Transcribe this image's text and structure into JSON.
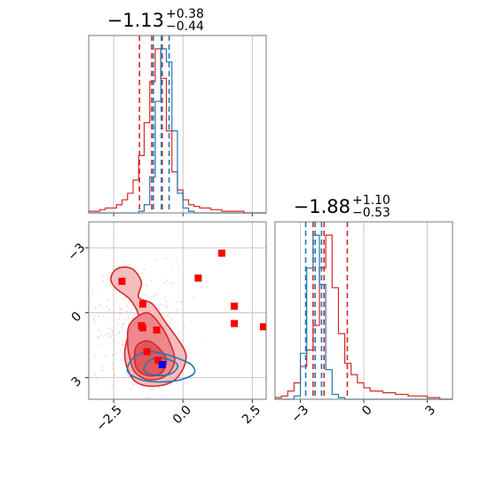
{
  "chart_data": {
    "type": "corner",
    "colors": {
      "red": "#d62728",
      "blue": "#1f77b4",
      "marker_blue": "#0000ff",
      "grid": "#c8c8c8"
    },
    "panels": [
      {
        "id": "hist-param-1",
        "type": "histogram",
        "title": {
          "median": "−1.13",
          "plus": "+0.38",
          "minus": "−0.44"
        },
        "xlim": [
          -3.4,
          3.0
        ],
        "xticks": [
          -2.5,
          0.0,
          2.5
        ],
        "series": [
          {
            "name": "",
            "color": "#d62728",
            "quantiles": [
              -1.57,
              -1.13,
              -0.75
            ],
            "x": [
              -3.4,
              -3.2,
              -3.0,
              -2.8,
              -2.6,
              -2.4,
              -2.2,
              -2.0,
              -1.8,
              -1.6,
              -1.4,
              -1.2,
              -1.0,
              -0.8,
              -0.6,
              -0.4,
              -0.2,
              0.0,
              0.2,
              0.4,
              0.6,
              0.8,
              1.0,
              1.2,
              1.4,
              1.6,
              1.8,
              2.0,
              2.2,
              2.4,
              2.6,
              2.8
            ],
            "counts": [
              1,
              1,
              2,
              3,
              3,
              5,
              8,
              12,
              20,
              35,
              55,
              80,
              100,
              82,
              50,
              25,
              14,
              8,
              5,
              4,
              3,
              3,
              2,
              2,
              1,
              1,
              1,
              1,
              0,
              0,
              0,
              0
            ]
          },
          {
            "name": "",
            "color": "#1f77b4",
            "quantiles": [
              -1.07,
              -0.78,
              -0.5
            ],
            "x": [
              -3.4,
              -3.2,
              -3.0,
              -2.8,
              -2.6,
              -2.4,
              -2.2,
              -2.0,
              -1.8,
              -1.6,
              -1.4,
              -1.2,
              -1.0,
              -0.8,
              -0.6,
              -0.4,
              -0.2,
              0.0,
              0.2,
              0.4,
              0.6,
              0.8,
              1.0,
              1.2,
              1.4,
              1.6,
              1.8,
              2.0,
              2.2,
              2.4,
              2.6,
              2.8
            ],
            "counts": [
              0,
              0,
              0,
              0,
              0,
              0,
              0,
              0,
              0,
              1,
              5,
              22,
              68,
              100,
              92,
              50,
              12,
              3,
              1,
              0,
              0,
              0,
              0,
              0,
              0,
              0,
              0,
              0,
              0,
              0,
              0,
              0
            ]
          }
        ]
      },
      {
        "id": "hist-param-2",
        "type": "histogram",
        "title": {
          "median": "−1.88",
          "plus": "+1.10",
          "minus": "−0.53"
        },
        "xlim": [
          -4.2,
          4.2
        ],
        "xticks": [
          -3,
          0,
          3
        ],
        "series": [
          {
            "name": "",
            "color": "#d62728",
            "quantiles": [
              -2.4,
              -1.88,
              -0.78
            ],
            "x": [
              -4.2,
              -3.9,
              -3.6,
              -3.3,
              -3.0,
              -2.7,
              -2.4,
              -2.1,
              -1.8,
              -1.5,
              -1.2,
              -0.9,
              -0.6,
              -0.3,
              0.0,
              0.3,
              0.6,
              0.9,
              1.2,
              1.5,
              1.8,
              2.1,
              2.4,
              2.7,
              3.0,
              3.3,
              3.6,
              3.9
            ],
            "counts": [
              1,
              2,
              5,
              10,
              20,
              30,
              45,
              80,
              100,
              68,
              40,
              22,
              15,
              10,
              7,
              5,
              5,
              4,
              4,
              3,
              3,
              2,
              2,
              2,
              1,
              1,
              0,
              0
            ]
          },
          {
            "name": "",
            "color": "#1f77b4",
            "quantiles": [
              -2.75,
              -2.3,
              -2.0
            ],
            "x": [
              -4.2,
              -3.9,
              -3.6,
              -3.3,
              -3.0,
              -2.7,
              -2.4,
              -2.1,
              -1.8,
              -1.5,
              -1.2,
              -0.9,
              -0.6,
              -0.3,
              0.0,
              0.3,
              0.6,
              0.9,
              1.2,
              1.5,
              1.8,
              2.1,
              2.4,
              2.7,
              3.0,
              3.3,
              3.6,
              3.9
            ],
            "counts": [
              0,
              0,
              0,
              2,
              28,
              80,
              100,
              70,
              18,
              3,
              1,
              0,
              0,
              0,
              0,
              0,
              0,
              0,
              0,
              0,
              0,
              0,
              0,
              0,
              0,
              0,
              0,
              0
            ]
          }
        ]
      },
      {
        "id": "scatter-joint",
        "type": "contour-scatter",
        "xlim": [
          -3.4,
          3.0
        ],
        "ylim": [
          -4.0,
          4.2
        ],
        "xticks": [
          -2.5,
          0.0,
          2.5
        ],
        "yticks": [
          -3,
          0,
          3
        ],
        "x_tick_labels": [
          "−2.5",
          "0.0",
          "2.5"
        ],
        "y_tick_labels": [
          "3",
          "0",
          "−3"
        ],
        "red_contour_levels": [
          {
            "level": "outer",
            "points": [
              [
                -2.6,
                1.5
              ],
              [
                -2.5,
                1.9
              ],
              [
                -2.2,
                2.1
              ],
              [
                -1.8,
                2.0
              ],
              [
                -1.5,
                1.4
              ],
              [
                -1.6,
                0.7
              ],
              [
                -1.1,
                0.4
              ],
              [
                -0.6,
                -0.5
              ],
              [
                -0.2,
                -1.2
              ],
              [
                0.1,
                -1.9
              ],
              [
                0.0,
                -2.6
              ],
              [
                -0.4,
                -3.2
              ],
              [
                -1.1,
                -3.4
              ],
              [
                -1.7,
                -3.2
              ],
              [
                -2.0,
                -2.6
              ],
              [
                -2.1,
                -1.8
              ],
              [
                -1.9,
                -0.8
              ],
              [
                -1.6,
                -0.2
              ],
              [
                -1.9,
                0.6
              ],
              [
                -2.4,
                1.1
              ]
            ]
          },
          {
            "level": "middle",
            "points": [
              [
                -1.9,
                -0.5
              ],
              [
                -1.3,
                0.0
              ],
              [
                -0.8,
                -0.6
              ],
              [
                -0.5,
                -1.3
              ],
              [
                -0.3,
                -2.2
              ],
              [
                -0.6,
                -2.9
              ],
              [
                -1.2,
                -3.1
              ],
              [
                -1.7,
                -2.8
              ],
              [
                -1.9,
                -2.2
              ],
              [
                -2.0,
                -1.3
              ]
            ]
          },
          {
            "level": "inner",
            "points": [
              [
                -1.7,
                -1.6
              ],
              [
                -1.3,
                -1.3
              ],
              [
                -0.9,
                -1.6
              ],
              [
                -0.6,
                -2.2
              ],
              [
                -0.8,
                -2.8
              ],
              [
                -1.3,
                -2.9
              ],
              [
                -1.7,
                -2.5
              ]
            ]
          }
        ],
        "blue_contour_levels": [
          {
            "level": "outer",
            "points": [
              [
                -1.8,
                -2.1
              ],
              [
                -1.3,
                -1.8
              ],
              [
                -0.7,
                -1.9
              ],
              [
                -0.2,
                -2.1
              ],
              [
                0.3,
                -2.4
              ],
              [
                0.4,
                -2.8
              ],
              [
                -0.1,
                -3.1
              ],
              [
                -0.8,
                -3.2
              ],
              [
                -1.5,
                -3.1
              ],
              [
                -2.0,
                -2.7
              ]
            ]
          },
          {
            "level": "inner",
            "points": [
              [
                -1.2,
                -2.2
              ],
              [
                -0.7,
                -2.1
              ],
              [
                -0.2,
                -2.4
              ],
              [
                -0.4,
                -2.8
              ],
              [
                -0.9,
                -2.9
              ],
              [
                -1.4,
                -2.7
              ]
            ]
          }
        ],
        "red_markers": [
          {
            "x": -2.2,
            "y": 1.45
          },
          {
            "x": 1.4,
            "y": 2.75
          },
          {
            "x": 0.55,
            "y": 1.6
          },
          {
            "x": -1.45,
            "y": 0.4
          },
          {
            "x": 1.85,
            "y": 0.3
          },
          {
            "x": -1.5,
            "y": -0.6
          },
          {
            "x": -1.45,
            "y": -0.7
          },
          {
            "x": -0.95,
            "y": -0.8
          },
          {
            "x": 1.85,
            "y": -0.5
          },
          {
            "x": 2.9,
            "y": -0.65
          },
          {
            "x": -1.3,
            "y": -1.8
          },
          {
            "x": -0.9,
            "y": -2.2
          }
        ],
        "blue_markers": [
          {
            "x": -0.75,
            "y": -2.4
          }
        ]
      }
    ]
  }
}
